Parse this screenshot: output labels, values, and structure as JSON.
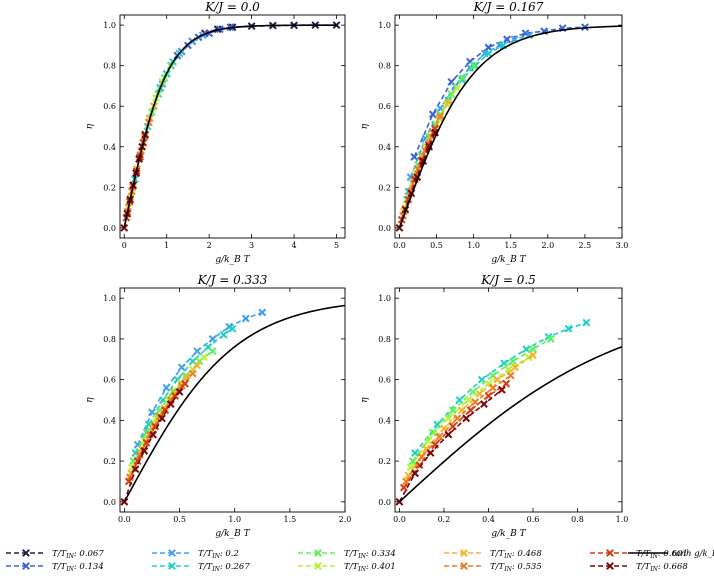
{
  "legend": {
    "placement": "bottom",
    "entries": [
      "T/T_{IN}: 0.067",
      "T/T_{IN}: 0.134",
      "T/T_{IN}: 0.2",
      "T/T_{IN}: 0.267",
      "T/T_{IN}: 0.334",
      "T/T_{IN}: 0.401",
      "T/T_{IN}: 0.468",
      "T/T_{IN}: 0.535",
      "T/T_{IN}: 0.601",
      "T/T_{IN}: 0.668",
      "tanh g/k_B T"
    ]
  },
  "colors": {
    "0.067": "#2a1848",
    "0.134": "#3b62d6",
    "0.2": "#3ea0ef",
    "0.267": "#1bd0c4",
    "0.334": "#5ef05a",
    "0.401": "#b8f230",
    "0.468": "#f2b52a",
    "0.535": "#f07b25",
    "0.601": "#d63a14",
    "0.668": "#7a0606",
    "tanh": "#000000"
  },
  "chart_data": [
    {
      "type": "line",
      "title": "K/J = 0.0",
      "xlabel": "g/k_B T",
      "ylabel": "η",
      "xlim": [
        -0.1,
        5.2
      ],
      "ylim": [
        -0.05,
        1.05
      ],
      "xticks": [
        "0",
        "1",
        "2",
        "3",
        "4",
        "5"
      ],
      "xtick_values": [
        0,
        1,
        2,
        3,
        4,
        5
      ],
      "yticks": [
        "0.0",
        "0.2",
        "0.4",
        "0.6",
        "0.8",
        "1.0"
      ],
      "ytick_values": [
        0,
        0.2,
        0.4,
        0.6,
        0.8,
        1.0
      ],
      "tanh_curve": {
        "x_max": 5.0
      },
      "series": [
        {
          "key": "0.067",
          "x": [
            0.6,
            0.85,
            1.1,
            1.35,
            1.6,
            1.9,
            2.2,
            2.55,
            3.0,
            3.5,
            4.0,
            4.5,
            5.0
          ],
          "y": [
            0.54,
            0.69,
            0.8,
            0.87,
            0.92,
            0.96,
            0.98,
            0.99,
            0.995,
            0.998,
            0.999,
            1.0,
            1.0
          ]
        },
        {
          "key": "0.134",
          "x": [
            0.4,
            0.6,
            0.8,
            1.0,
            1.25,
            1.5,
            1.75,
            2.0,
            2.25,
            2.5
          ],
          "y": [
            0.38,
            0.54,
            0.66,
            0.76,
            0.85,
            0.9,
            0.94,
            0.96,
            0.98,
            0.99
          ]
        },
        {
          "key": "0.2",
          "x": [
            0.3,
            0.5,
            0.7,
            0.9,
            1.1,
            1.35,
            1.6,
            1.85
          ],
          "y": [
            0.29,
            0.46,
            0.6,
            0.71,
            0.8,
            0.87,
            0.92,
            0.95
          ]
        },
        {
          "key": "0.267",
          "x": [
            0.25,
            0.4,
            0.55,
            0.7,
            0.85,
            1.0,
            1.15,
            1.3
          ],
          "y": [
            0.24,
            0.38,
            0.5,
            0.6,
            0.69,
            0.76,
            0.82,
            0.86
          ]
        },
        {
          "key": "0.334",
          "x": [
            0.2,
            0.35,
            0.5,
            0.65,
            0.8,
            0.95,
            1.1
          ],
          "y": [
            0.2,
            0.34,
            0.46,
            0.57,
            0.66,
            0.74,
            0.8
          ]
        },
        {
          "key": "0.401",
          "x": [
            0.15,
            0.3,
            0.45,
            0.6,
            0.75,
            0.9
          ],
          "y": [
            0.15,
            0.29,
            0.42,
            0.54,
            0.64,
            0.72
          ]
        },
        {
          "key": "0.468",
          "x": [
            0.1,
            0.2,
            0.3,
            0.4,
            0.5,
            0.6,
            0.7
          ],
          "y": [
            0.1,
            0.2,
            0.29,
            0.38,
            0.46,
            0.54,
            0.6
          ]
        },
        {
          "key": "0.535",
          "x": [
            0.08,
            0.18,
            0.28,
            0.38,
            0.48,
            0.58
          ],
          "y": [
            0.08,
            0.18,
            0.27,
            0.36,
            0.45,
            0.52
          ]
        },
        {
          "key": "0.601",
          "x": [
            0.05,
            0.13,
            0.21,
            0.29,
            0.37,
            0.45
          ],
          "y": [
            0.05,
            0.13,
            0.21,
            0.28,
            0.35,
            0.42
          ]
        },
        {
          "key": "0.668",
          "x": [
            0.0,
            0.07,
            0.14,
            0.21,
            0.28,
            0.35,
            0.42,
            0.49
          ],
          "y": [
            0.0,
            0.07,
            0.14,
            0.21,
            0.27,
            0.34,
            0.4,
            0.46
          ]
        }
      ]
    },
    {
      "type": "line",
      "title": "K/J = 0.167",
      "xlabel": "g/k_B T",
      "ylabel": "η",
      "xlim": [
        -0.06,
        3.0
      ],
      "ylim": [
        -0.05,
        1.05
      ],
      "xticks": [
        "0.0",
        "0.5",
        "1.0",
        "1.5",
        "2.0",
        "2.5",
        "3.0"
      ],
      "xtick_values": [
        0,
        0.5,
        1.0,
        1.5,
        2.0,
        2.5,
        3.0
      ],
      "yticks": [
        "0.0",
        "0.2",
        "0.4",
        "0.6",
        "0.8",
        "1.0"
      ],
      "ytick_values": [
        0,
        0.2,
        0.4,
        0.6,
        0.8,
        1.0
      ],
      "tanh_curve": {
        "x_max": 3.0
      },
      "series": [
        {
          "key": "0.134",
          "x": [
            0.2,
            0.45,
            0.7,
            0.95,
            1.2,
            1.45,
            1.7,
            1.95,
            2.2,
            2.5
          ],
          "y": [
            0.35,
            0.56,
            0.72,
            0.82,
            0.89,
            0.93,
            0.96,
            0.97,
            0.985,
            0.99
          ]
        },
        {
          "key": "0.2",
          "x": [
            0.15,
            0.35,
            0.55,
            0.75,
            0.95,
            1.15,
            1.35,
            1.55,
            1.75
          ],
          "y": [
            0.25,
            0.44,
            0.59,
            0.7,
            0.79,
            0.86,
            0.9,
            0.93,
            0.95
          ]
        },
        {
          "key": "0.267",
          "x": [
            0.12,
            0.3,
            0.48,
            0.66,
            0.84,
            1.02,
            1.2,
            1.4
          ],
          "y": [
            0.18,
            0.36,
            0.51,
            0.63,
            0.73,
            0.8,
            0.86,
            0.9
          ]
        },
        {
          "key": "0.334",
          "x": [
            0.1,
            0.25,
            0.4,
            0.55,
            0.7,
            0.85,
            1.0
          ],
          "y": [
            0.14,
            0.31,
            0.45,
            0.56,
            0.66,
            0.74,
            0.8
          ]
        },
        {
          "key": "0.401",
          "x": [
            0.08,
            0.22,
            0.36,
            0.5,
            0.64,
            0.78
          ],
          "y": [
            0.1,
            0.27,
            0.4,
            0.51,
            0.61,
            0.69
          ]
        },
        {
          "key": "0.468",
          "x": [
            0.06,
            0.18,
            0.3,
            0.42,
            0.54,
            0.66
          ],
          "y": [
            0.08,
            0.22,
            0.35,
            0.45,
            0.54,
            0.62
          ]
        },
        {
          "key": "0.535",
          "x": [
            0.05,
            0.15,
            0.25,
            0.35,
            0.45,
            0.55
          ],
          "y": [
            0.06,
            0.18,
            0.29,
            0.38,
            0.47,
            0.55
          ]
        },
        {
          "key": "0.601",
          "x": [
            0.03,
            0.12,
            0.21,
            0.3,
            0.39,
            0.48
          ],
          "y": [
            0.04,
            0.14,
            0.24,
            0.33,
            0.41,
            0.49
          ]
        },
        {
          "key": "0.668",
          "x": [
            0.0,
            0.08,
            0.16,
            0.24,
            0.32,
            0.4,
            0.48
          ],
          "y": [
            0.0,
            0.09,
            0.17,
            0.25,
            0.33,
            0.4,
            0.47
          ]
        }
      ]
    },
    {
      "type": "line",
      "title": "K/J = 0.333",
      "xlabel": "g/k_B T",
      "ylabel": "η",
      "xlim": [
        -0.04,
        2.0
      ],
      "ylim": [
        -0.05,
        1.05
      ],
      "xticks": [
        "0.0",
        "0.5",
        "1.0",
        "1.5",
        "2.0"
      ],
      "xtick_values": [
        0,
        0.5,
        1.0,
        1.5,
        2.0
      ],
      "yticks": [
        "0.0",
        "0.2",
        "0.4",
        "0.6",
        "0.8",
        "1.0"
      ],
      "ytick_values": [
        0,
        0.2,
        0.4,
        0.6,
        0.8,
        1.0
      ],
      "tanh_curve": {
        "x_max": 2.0
      },
      "series": [
        {
          "key": "0.2",
          "x": [
            0.12,
            0.25,
            0.38,
            0.52,
            0.66,
            0.8,
            0.95,
            1.1,
            1.25
          ],
          "y": [
            0.28,
            0.44,
            0.56,
            0.66,
            0.74,
            0.8,
            0.86,
            0.9,
            0.93
          ]
        },
        {
          "key": "0.267",
          "x": [
            0.1,
            0.22,
            0.35,
            0.48,
            0.62,
            0.76,
            0.9,
            0.98
          ],
          "y": [
            0.24,
            0.38,
            0.5,
            0.6,
            0.69,
            0.76,
            0.82,
            0.85
          ]
        },
        {
          "key": "0.334",
          "x": [
            0.08,
            0.2,
            0.32,
            0.44,
            0.56,
            0.68,
            0.8
          ],
          "y": [
            0.2,
            0.34,
            0.45,
            0.54,
            0.62,
            0.69,
            0.74
          ]
        },
        {
          "key": "0.401",
          "x": [
            0.07,
            0.18,
            0.29,
            0.4,
            0.51,
            0.62,
            0.72
          ],
          "y": [
            0.17,
            0.3,
            0.41,
            0.5,
            0.58,
            0.65,
            0.71
          ]
        },
        {
          "key": "0.468",
          "x": [
            0.06,
            0.16,
            0.26,
            0.36,
            0.46,
            0.56,
            0.66
          ],
          "y": [
            0.14,
            0.26,
            0.37,
            0.46,
            0.54,
            0.61,
            0.67
          ]
        },
        {
          "key": "0.535",
          "x": [
            0.05,
            0.14,
            0.23,
            0.32,
            0.42,
            0.52,
            0.62
          ],
          "y": [
            0.12,
            0.23,
            0.33,
            0.42,
            0.5,
            0.57,
            0.63
          ]
        },
        {
          "key": "0.601",
          "x": [
            0.04,
            0.12,
            0.2,
            0.28,
            0.37,
            0.46,
            0.55
          ],
          "y": [
            0.1,
            0.2,
            0.29,
            0.37,
            0.45,
            0.52,
            0.58
          ]
        },
        {
          "key": "0.668",
          "x": [
            0.0,
            0.1,
            0.18,
            0.26,
            0.34,
            0.42,
            0.5
          ],
          "y": [
            0.0,
            0.16,
            0.25,
            0.33,
            0.41,
            0.48,
            0.54
          ]
        }
      ]
    },
    {
      "type": "line",
      "title": "K/J = 0.5",
      "xlabel": "g/k_B T",
      "ylabel": "η",
      "xlim": [
        -0.02,
        1.0
      ],
      "ylim": [
        -0.05,
        1.05
      ],
      "xticks": [
        "0.0",
        "0.2",
        "0.4",
        "0.6",
        "0.8",
        "1.0"
      ],
      "xtick_values": [
        0,
        0.2,
        0.4,
        0.6,
        0.8,
        1.0
      ],
      "yticks": [
        "0.0",
        "0.2",
        "0.4",
        "0.6",
        "0.8",
        "1.0"
      ],
      "ytick_values": [
        0,
        0.2,
        0.4,
        0.6,
        0.8,
        1.0
      ],
      "tanh_curve": {
        "x_max": 1.0
      },
      "series": [
        {
          "key": "0.267",
          "x": [
            0.07,
            0.17,
            0.27,
            0.37,
            0.47,
            0.57,
            0.67,
            0.76,
            0.84
          ],
          "y": [
            0.24,
            0.38,
            0.5,
            0.6,
            0.68,
            0.75,
            0.81,
            0.85,
            0.88
          ]
        },
        {
          "key": "0.334",
          "x": [
            0.06,
            0.15,
            0.24,
            0.33,
            0.42,
            0.51,
            0.6,
            0.68
          ],
          "y": [
            0.2,
            0.34,
            0.45,
            0.54,
            0.62,
            0.69,
            0.75,
            0.8
          ]
        },
        {
          "key": "0.401",
          "x": [
            0.05,
            0.13,
            0.22,
            0.31,
            0.4,
            0.49,
            0.58
          ],
          "y": [
            0.17,
            0.3,
            0.41,
            0.5,
            0.58,
            0.65,
            0.71
          ]
        },
        {
          "key": "0.468",
          "x": [
            0.04,
            0.12,
            0.2,
            0.28,
            0.36,
            0.44,
            0.52,
            0.6
          ],
          "y": [
            0.13,
            0.26,
            0.36,
            0.45,
            0.53,
            0.6,
            0.66,
            0.72
          ]
        },
        {
          "key": "0.535",
          "x": [
            0.03,
            0.1,
            0.18,
            0.26,
            0.34,
            0.42,
            0.5
          ],
          "y": [
            0.1,
            0.22,
            0.32,
            0.41,
            0.49,
            0.56,
            0.62
          ]
        },
        {
          "key": "0.601",
          "x": [
            0.02,
            0.09,
            0.16,
            0.24,
            0.32,
            0.4,
            0.48
          ],
          "y": [
            0.07,
            0.18,
            0.28,
            0.37,
            0.45,
            0.52,
            0.58
          ]
        },
        {
          "key": "0.668",
          "x": [
            0.0,
            0.07,
            0.14,
            0.22,
            0.3,
            0.38,
            0.46
          ],
          "y": [
            0.0,
            0.14,
            0.24,
            0.33,
            0.41,
            0.48,
            0.55
          ]
        }
      ]
    }
  ]
}
